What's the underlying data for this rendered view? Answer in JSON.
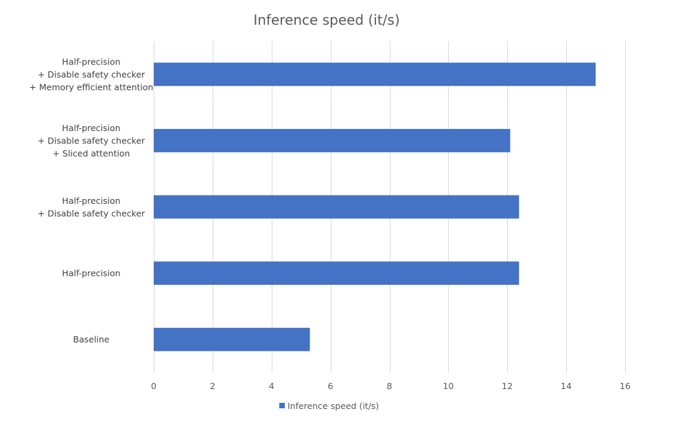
{
  "chart_data": {
    "type": "bar",
    "orientation": "horizontal",
    "title": "Inference speed (it/s)",
    "xlabel": "",
    "ylabel": "",
    "categories": [
      [
        "Half-precision",
        "+ Disable safety checker",
        "+ Memory efficient attention"
      ],
      [
        "Half-precision",
        "+ Disable safety checker",
        "+ Sliced attention"
      ],
      [
        "Half-precision",
        "+ Disable safety checker"
      ],
      [
        "Half-precision"
      ],
      [
        "Baseline"
      ]
    ],
    "series": [
      {
        "name": "Inference speed (it/s)",
        "values": [
          15.0,
          12.1,
          12.4,
          12.4,
          5.3
        ]
      }
    ],
    "xlim": [
      0,
      16
    ],
    "xticks": [
      "0",
      "2",
      "4",
      "6",
      "8",
      "10",
      "12",
      "14",
      "16"
    ],
    "grid": true,
    "legend": "bottom",
    "colors": {
      "bar": "#4472C4",
      "grid": "#D9D9D9",
      "title": "#595959",
      "text": "#404040"
    }
  }
}
